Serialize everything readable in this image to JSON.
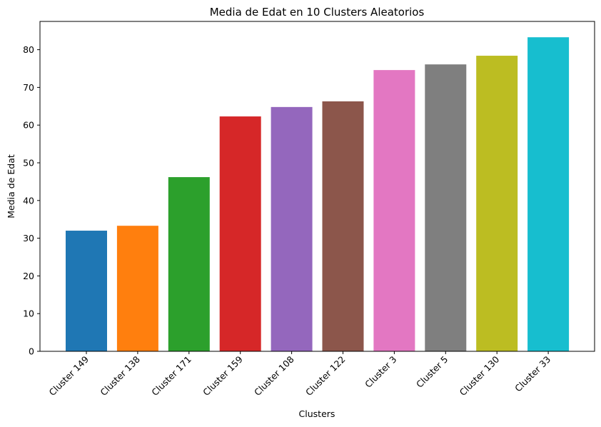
{
  "chart_data": {
    "type": "bar",
    "title": "Media de Edat en 10 Clusters Aleatorios",
    "xlabel": "Clusters",
    "ylabel": "Media de Edat",
    "categories": [
      "Cluster 149",
      "Cluster 138",
      "Cluster 171",
      "Cluster 159",
      "Cluster 108",
      "Cluster 122",
      "Cluster 3",
      "Cluster 5",
      "Cluster 130",
      "Cluster 33"
    ],
    "values": [
      32.0,
      33.3,
      46.2,
      62.3,
      64.8,
      66.3,
      74.6,
      76.1,
      78.4,
      83.3
    ],
    "colors": [
      "#1f77b4",
      "#ff7f0e",
      "#2ca02c",
      "#d62728",
      "#9467bd",
      "#8c564b",
      "#e377c2",
      "#7f7f7f",
      "#bcbd22",
      "#17becf"
    ],
    "ylim": [
      0,
      87.5
    ],
    "yticks": [
      0,
      10,
      20,
      30,
      40,
      50,
      60,
      70,
      80
    ],
    "grid": false,
    "legend": "none"
  }
}
